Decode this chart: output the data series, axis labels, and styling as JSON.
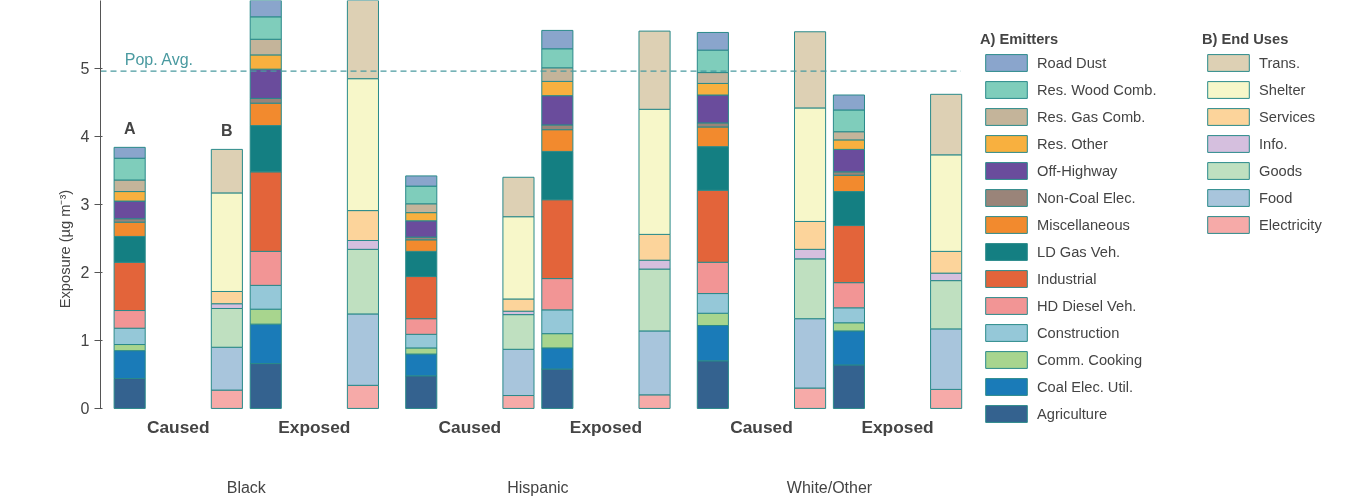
{
  "chart_data": {
    "type": "bar",
    "stacked": true,
    "ylabel": "Exposure (µg m⁻³)",
    "ylim": [
      0,
      6
    ],
    "yticks": [
      0,
      1,
      2,
      3,
      4,
      5
    ],
    "tick_labels": "y",
    "grid": false,
    "legend": "right",
    "legend_title": [
      "A) Emitters",
      "B) End Uses"
    ],
    "categories": [
      null,
      null,
      null,
      null,
      null,
      null,
      null,
      null,
      null,
      null,
      null,
      null
    ],
    "series": [
      {
        "name": "Agriculture",
        "color": "#34628f",
        "values": [
          0.44,
          null,
          0.66,
          null,
          0.48,
          null,
          0.58,
          null,
          0.7,
          null,
          0.64,
          null
        ]
      },
      {
        "name": "Coal Elec. Util.",
        "color": "#1a7bb8",
        "values": [
          0.41,
          null,
          0.58,
          null,
          0.32,
          null,
          0.31,
          null,
          0.52,
          null,
          0.5,
          null
        ]
      },
      {
        "name": "Comm. Cooking",
        "color": "#a8d58e",
        "values": [
          0.09,
          null,
          0.22,
          null,
          0.09,
          null,
          0.21,
          null,
          0.18,
          null,
          0.12,
          null
        ]
      },
      {
        "name": "Construction",
        "color": "#95c8d8",
        "values": [
          0.24,
          null,
          0.35,
          null,
          0.2,
          null,
          0.35,
          null,
          0.29,
          null,
          0.22,
          null
        ]
      },
      {
        "name": "HD Diesel Veh.",
        "color": "#f29595",
        "values": [
          0.26,
          null,
          0.5,
          null,
          0.23,
          null,
          0.46,
          null,
          0.46,
          null,
          0.37,
          null
        ]
      },
      {
        "name": "Industrial",
        "color": "#e3643a",
        "values": [
          0.71,
          null,
          1.17,
          null,
          0.62,
          null,
          1.16,
          null,
          1.06,
          null,
          0.84,
          null
        ]
      },
      {
        "name": "LD Gas Veh.",
        "color": "#147f82",
        "values": [
          0.38,
          null,
          0.68,
          null,
          0.37,
          null,
          0.71,
          null,
          0.64,
          null,
          0.5,
          null
        ]
      },
      {
        "name": "Miscellaneous",
        "color": "#f28a2e",
        "values": [
          0.21,
          null,
          0.33,
          null,
          0.17,
          null,
          0.32,
          null,
          0.29,
          null,
          0.24,
          null
        ]
      },
      {
        "name": "Non-Coal Elec.",
        "color": "#9a8479",
        "values": [
          0.05,
          null,
          0.07,
          null,
          0.04,
          null,
          0.07,
          null,
          0.06,
          null,
          0.05,
          null
        ]
      },
      {
        "name": "Off-Highway",
        "color": "#6a4c9c",
        "values": [
          0.26,
          null,
          0.43,
          null,
          0.24,
          null,
          0.43,
          null,
          0.41,
          null,
          0.33,
          null
        ]
      },
      {
        "name": "Res. Other",
        "color": "#f8b03f",
        "values": [
          0.14,
          null,
          0.21,
          null,
          0.12,
          null,
          0.21,
          null,
          0.17,
          null,
          0.14,
          null
        ]
      },
      {
        "name": "Res. Gas Comb.",
        "color": "#c4b49a",
        "values": [
          0.17,
          null,
          0.23,
          null,
          0.13,
          null,
          0.2,
          null,
          0.16,
          null,
          0.12,
          null
        ]
      },
      {
        "name": "Res. Wood Comb.",
        "color": "#7fcdbb",
        "values": [
          0.32,
          null,
          0.33,
          null,
          0.26,
          null,
          0.28,
          null,
          0.33,
          null,
          0.32,
          null
        ]
      },
      {
        "name": "Road Dust",
        "color": "#8aa5cc",
        "values": [
          0.16,
          null,
          0.25,
          null,
          0.15,
          null,
          0.27,
          null,
          0.26,
          null,
          0.22,
          null
        ]
      },
      {
        "name": "Electricity",
        "color": "#f6aaa8",
        "values": [
          null,
          0.27,
          null,
          0.34,
          null,
          0.19,
          null,
          0.2,
          null,
          0.3,
          null,
          0.28
        ]
      },
      {
        "name": "Food",
        "color": "#a8c5dc",
        "values": [
          null,
          0.63,
          null,
          1.05,
          null,
          0.68,
          null,
          0.94,
          null,
          1.02,
          null,
          0.89
        ]
      },
      {
        "name": "Goods",
        "color": "#bfe0c0",
        "values": [
          null,
          0.57,
          null,
          0.95,
          null,
          0.51,
          null,
          0.91,
          null,
          0.88,
          null,
          0.71
        ]
      },
      {
        "name": "Info.",
        "color": "#d5bfde",
        "values": [
          null,
          0.07,
          null,
          0.13,
          null,
          0.05,
          null,
          0.13,
          null,
          0.14,
          null,
          0.11
        ]
      },
      {
        "name": "Services",
        "color": "#fcd49b",
        "values": [
          null,
          0.18,
          null,
          0.44,
          null,
          0.18,
          null,
          0.38,
          null,
          0.41,
          null,
          0.32
        ]
      },
      {
        "name": "Shelter",
        "color": "#f7f7c9",
        "values": [
          null,
          1.45,
          null,
          1.94,
          null,
          1.21,
          null,
          1.84,
          null,
          1.67,
          null,
          1.42
        ]
      },
      {
        "name": "Trans.",
        "color": "#ddd0b4",
        "values": [
          null,
          0.64,
          null,
          1.16,
          null,
          0.58,
          null,
          1.15,
          null,
          1.12,
          null,
          0.89
        ]
      }
    ],
    "ref_lines": [
      {
        "axis": "y",
        "value": 4.96,
        "label": "Pop. Avg.",
        "color": "#4a9aa0",
        "line_style": "dashed"
      }
    ],
    "annotations": [
      "A",
      "B",
      "Caused",
      "Exposed",
      "Caused",
      "Exposed",
      "Caused",
      "Exposed",
      "Black",
      "Hispanic",
      "White/Other"
    ]
  }
}
